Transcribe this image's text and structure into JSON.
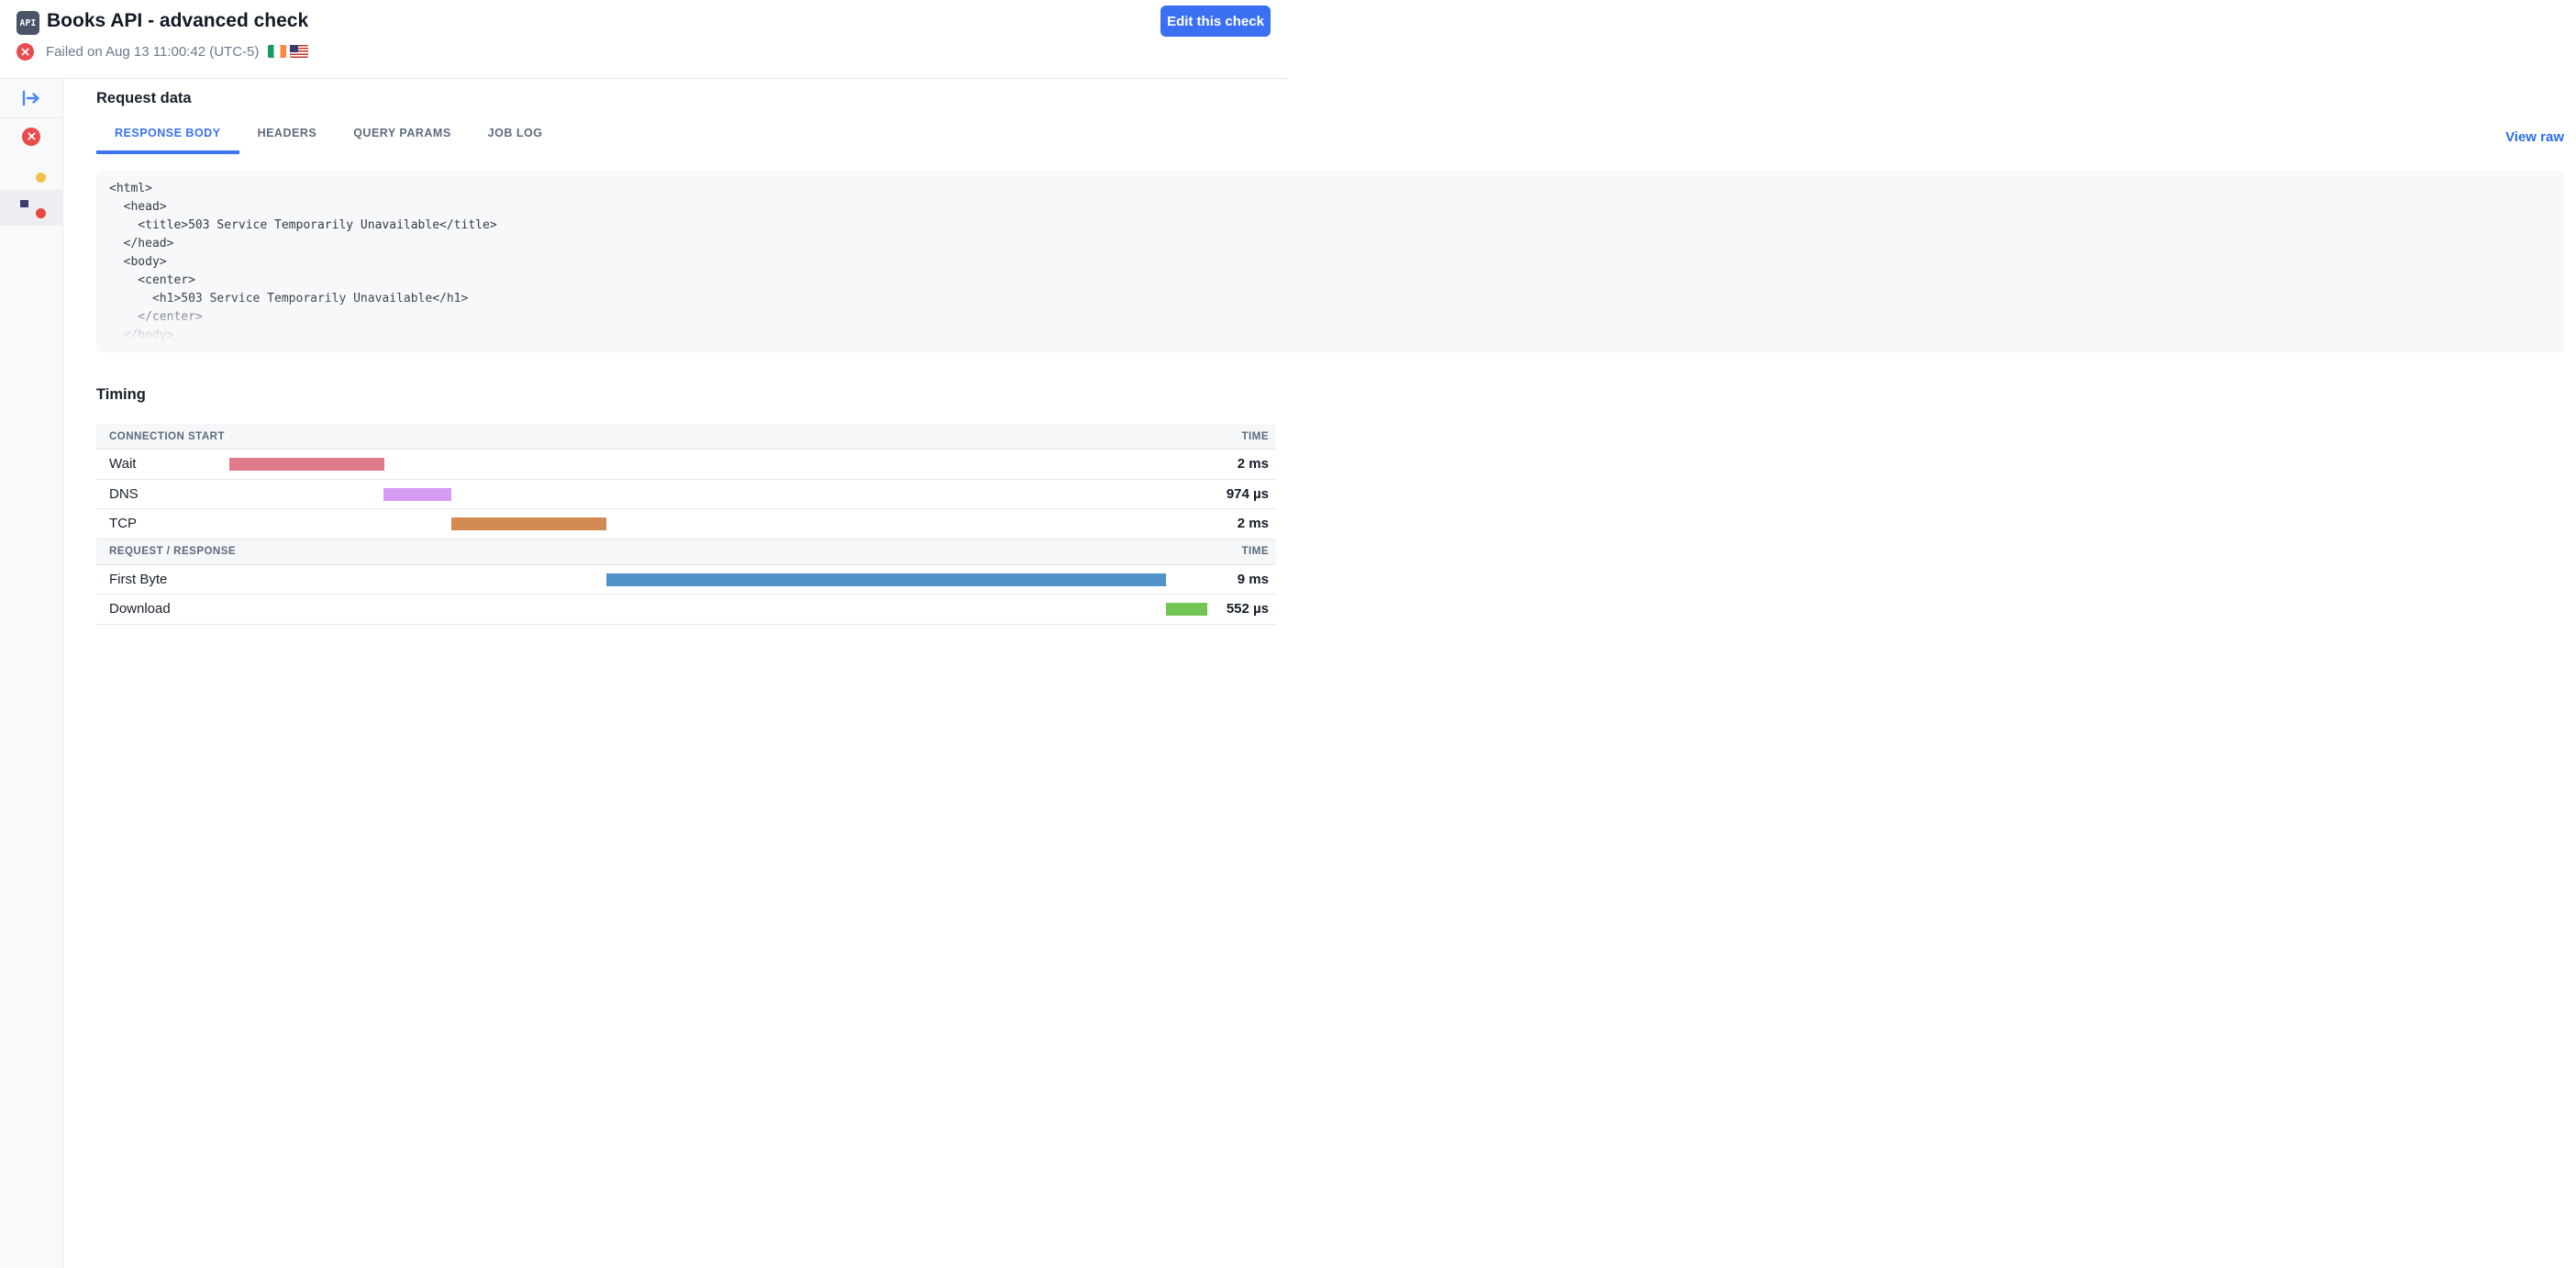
{
  "header": {
    "badge_label": "API",
    "title": "Books API - advanced check",
    "status_text": "Failed on Aug 13 11:00:42 (UTC-5)",
    "edit_button_label": "Edit this check",
    "status_color": "#e84c4c",
    "accent_color": "#3a70f1"
  },
  "sidebar": {
    "items": [
      {
        "icon": "expand-sidebar-arrow"
      },
      {
        "icon": "failed-x-circle"
      },
      {
        "icon": "ireland-flag",
        "status_dot": "amber"
      },
      {
        "icon": "us-flag",
        "status_dot": "red",
        "selected": true
      }
    ]
  },
  "request_data": {
    "heading": "Request data",
    "tabs": [
      {
        "label": "RESPONSE BODY",
        "active": true
      },
      {
        "label": "HEADERS",
        "active": false
      },
      {
        "label": "QUERY PARAMS",
        "active": false
      },
      {
        "label": "JOB LOG",
        "active": false
      }
    ],
    "view_raw_label": "View raw",
    "response_body_code": "<html>\n  <head>\n    <title>503 Service Temporarily Unavailable</title>\n  </head>\n  <body>\n    <center>\n      <h1>503 Service Temporarily Unavailable</h1>\n    </center>\n  </body>\n</html>"
  },
  "timing": {
    "heading": "Timing",
    "sections": [
      {
        "label": "CONNECTION START",
        "time_label": "TIME",
        "rows": [
          {
            "label": "Wait",
            "value": "2 ms",
            "color": "#e07b8a",
            "left_pct": 11.24,
            "width_pct": 13.14
          },
          {
            "label": "DNS",
            "value": "974 µs",
            "color": "#d69bf3",
            "left_pct": 24.36,
            "width_pct": 5.72
          },
          {
            "label": "TCP",
            "value": "2 ms",
            "color": "#d28a52",
            "left_pct": 30.07,
            "width_pct": 13.14
          }
        ]
      },
      {
        "label": "REQUEST / RESPONSE",
        "time_label": "TIME",
        "rows": [
          {
            "label": "First Byte",
            "value": "9 ms",
            "color": "#4f93c8",
            "left_pct": 43.2,
            "width_pct": 47.5
          },
          {
            "label": "Download",
            "value": "552 µs",
            "color": "#72c455",
            "left_pct": 90.65,
            "width_pct": 3.52
          }
        ]
      }
    ]
  }
}
